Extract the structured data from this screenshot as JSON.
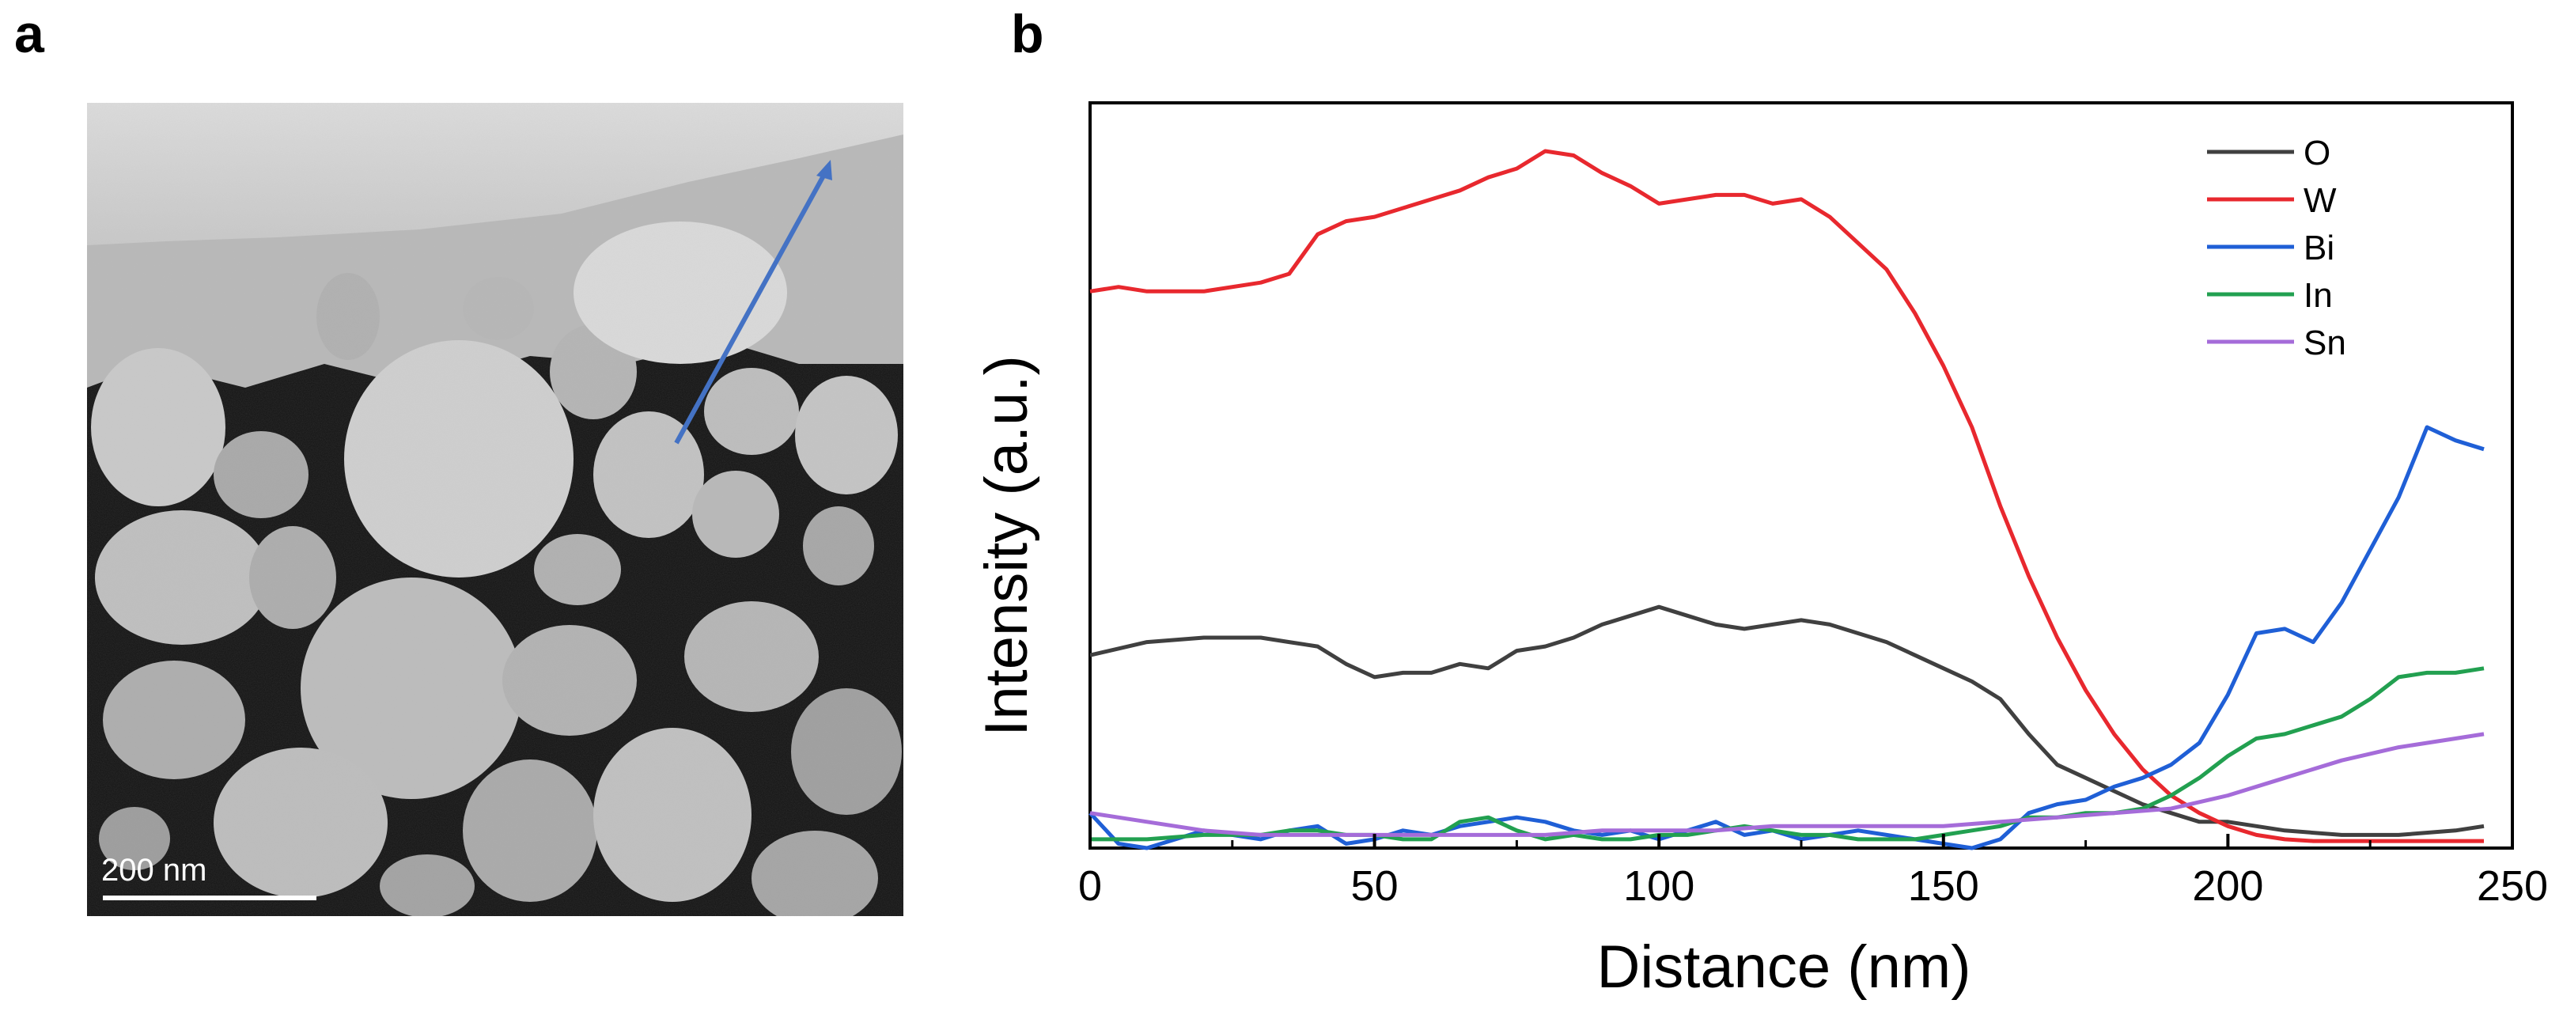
{
  "panels": {
    "a_label": "a",
    "b_label": "b"
  },
  "micrograph": {
    "scale_bar_label": "200 nm",
    "arrow_color": "#4472C4"
  },
  "chart_data": {
    "type": "line",
    "title": "",
    "xlabel": "Distance (nm)",
    "ylabel": "Intensity (a.u.)",
    "xlim": [
      0,
      250
    ],
    "ylim": [
      0,
      1
    ],
    "xticks": [
      0,
      50,
      100,
      150,
      200,
      250
    ],
    "y_ticks_labeled": false,
    "grid": false,
    "legend_position": "top-right",
    "series": [
      {
        "name": "O",
        "color": "#404040",
        "x": [
          0,
          10,
          20,
          30,
          35,
          40,
          45,
          50,
          55,
          60,
          65,
          70,
          75,
          80,
          85,
          90,
          95,
          100,
          105,
          110,
          115,
          120,
          125,
          130,
          135,
          140,
          145,
          150,
          155,
          160,
          165,
          170,
          175,
          180,
          185,
          190,
          195,
          200,
          205,
          210,
          220,
          230,
          240,
          245
        ],
        "y": [
          0.22,
          0.235,
          0.24,
          0.24,
          0.235,
          0.23,
          0.21,
          0.195,
          0.2,
          0.2,
          0.21,
          0.205,
          0.225,
          0.23,
          0.24,
          0.255,
          0.265,
          0.275,
          0.265,
          0.255,
          0.25,
          0.255,
          0.26,
          0.255,
          0.245,
          0.235,
          0.22,
          0.205,
          0.19,
          0.17,
          0.13,
          0.095,
          0.08,
          0.065,
          0.05,
          0.04,
          0.03,
          0.03,
          0.025,
          0.02,
          0.015,
          0.015,
          0.02,
          0.025
        ]
      },
      {
        "name": "W",
        "color": "#E8282E",
        "x": [
          0,
          5,
          10,
          20,
          30,
          35,
          40,
          45,
          50,
          55,
          60,
          65,
          70,
          75,
          80,
          85,
          90,
          95,
          100,
          105,
          110,
          115,
          120,
          125,
          130,
          135,
          140,
          145,
          150,
          155,
          160,
          165,
          170,
          175,
          180,
          185,
          190,
          195,
          200,
          205,
          210,
          215,
          220,
          225,
          230,
          240,
          245
        ],
        "y": [
          0.635,
          0.64,
          0.635,
          0.635,
          0.645,
          0.655,
          0.7,
          0.715,
          0.72,
          0.73,
          0.74,
          0.75,
          0.765,
          0.775,
          0.795,
          0.79,
          0.77,
          0.755,
          0.735,
          0.74,
          0.745,
          0.745,
          0.735,
          0.74,
          0.72,
          0.69,
          0.66,
          0.61,
          0.55,
          0.48,
          0.39,
          0.31,
          0.24,
          0.18,
          0.13,
          0.09,
          0.06,
          0.04,
          0.025,
          0.015,
          0.01,
          0.008,
          0.008,
          0.008,
          0.008,
          0.008,
          0.008
        ]
      },
      {
        "name": "Bi",
        "color": "#1F5FD6",
        "x": [
          0,
          5,
          10,
          15,
          20,
          25,
          30,
          35,
          40,
          45,
          50,
          55,
          60,
          65,
          70,
          75,
          80,
          85,
          90,
          95,
          100,
          105,
          110,
          115,
          120,
          125,
          130,
          135,
          140,
          145,
          150,
          155,
          160,
          165,
          170,
          175,
          180,
          185,
          190,
          195,
          200,
          205,
          210,
          215,
          220,
          225,
          230,
          235,
          240,
          245
        ],
        "y": [
          0.04,
          0.005,
          0.0,
          0.01,
          0.02,
          0.015,
          0.01,
          0.02,
          0.025,
          0.005,
          0.01,
          0.02,
          0.015,
          0.025,
          0.03,
          0.035,
          0.03,
          0.02,
          0.015,
          0.02,
          0.01,
          0.02,
          0.03,
          0.015,
          0.02,
          0.01,
          0.015,
          0.02,
          0.015,
          0.01,
          0.005,
          0.0,
          0.01,
          0.04,
          0.05,
          0.055,
          0.07,
          0.08,
          0.095,
          0.12,
          0.175,
          0.245,
          0.25,
          0.235,
          0.28,
          0.34,
          0.4,
          0.48,
          0.465,
          0.455
        ]
      },
      {
        "name": "In",
        "color": "#22A050",
        "x": [
          0,
          10,
          20,
          30,
          35,
          40,
          45,
          50,
          55,
          60,
          65,
          70,
          75,
          80,
          85,
          90,
          95,
          100,
          105,
          110,
          115,
          120,
          125,
          130,
          135,
          140,
          145,
          150,
          155,
          160,
          165,
          170,
          175,
          180,
          185,
          190,
          195,
          200,
          205,
          210,
          215,
          220,
          225,
          230,
          235,
          240,
          245
        ],
        "y": [
          0.01,
          0.01,
          0.015,
          0.015,
          0.02,
          0.02,
          0.015,
          0.015,
          0.01,
          0.01,
          0.03,
          0.035,
          0.02,
          0.01,
          0.015,
          0.01,
          0.01,
          0.015,
          0.015,
          0.02,
          0.025,
          0.02,
          0.015,
          0.015,
          0.01,
          0.01,
          0.01,
          0.015,
          0.02,
          0.025,
          0.035,
          0.035,
          0.04,
          0.04,
          0.045,
          0.06,
          0.08,
          0.105,
          0.125,
          0.13,
          0.14,
          0.15,
          0.17,
          0.195,
          0.2,
          0.2,
          0.205
        ]
      },
      {
        "name": "Sn",
        "color": "#A56CD9",
        "x": [
          0,
          10,
          20,
          30,
          40,
          50,
          60,
          70,
          80,
          90,
          100,
          110,
          120,
          130,
          140,
          150,
          160,
          170,
          180,
          190,
          200,
          210,
          220,
          230,
          240,
          245
        ],
        "y": [
          0.04,
          0.03,
          0.02,
          0.015,
          0.015,
          0.015,
          0.015,
          0.015,
          0.015,
          0.02,
          0.02,
          0.02,
          0.025,
          0.025,
          0.025,
          0.025,
          0.03,
          0.035,
          0.04,
          0.045,
          0.06,
          0.08,
          0.1,
          0.115,
          0.125,
          0.13
        ]
      }
    ]
  }
}
